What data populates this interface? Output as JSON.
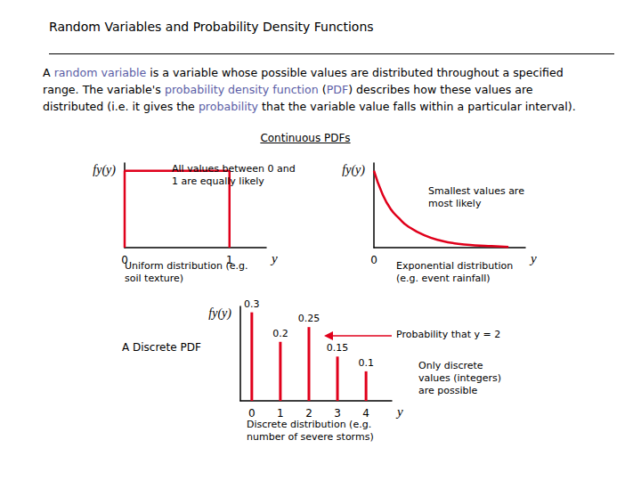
{
  "header": {
    "title": "Random Variables and Probability Density Functions"
  },
  "paragraph": [
    {
      "text": "A "
    },
    {
      "text": "random variable",
      "highlight": true
    },
    {
      "text": " is a variable whose possible values are distributed throughout a specified range.  The variable's "
    },
    {
      "text": "probability density function",
      "highlight": true
    },
    {
      "text": " ("
    },
    {
      "text": "PDF",
      "highlight": true
    },
    {
      "text": ") describes how these values are distributed (i.e. it gives the "
    },
    {
      "text": "probability",
      "highlight": true
    },
    {
      "text": " that the variable value falls within a particular interval)."
    }
  ],
  "section_title": "Continuous PDFs",
  "chart_data": [
    {
      "type": "line",
      "annotations": [
        "All values between 0 and 1 are equally likely"
      ],
      "caption": "Uniform distribution (e.g. soil texture)",
      "x": [
        0,
        0,
        1,
        1
      ],
      "values": [
        0,
        1,
        1,
        0
      ],
      "xlabel": "y",
      "ylabel": "fy(y)",
      "xlim": [
        0,
        1.35
      ],
      "ylim": [
        0,
        1.1
      ],
      "xticks": [
        0,
        1
      ],
      "tick_labels": "x",
      "color": "#e0001b",
      "line_style": "solid"
    },
    {
      "type": "line",
      "annotations": [
        "Smallest values are most likely"
      ],
      "caption": "Exponential distribution (e.g. event rainfall)",
      "x": [
        0,
        0.25,
        0.5,
        0.75,
        1,
        1.5,
        2,
        2.5,
        3,
        3.5,
        4
      ],
      "values": [
        1.0,
        0.7,
        0.5,
        0.38,
        0.28,
        0.16,
        0.09,
        0.05,
        0.03,
        0.02,
        0.01
      ],
      "xlabel": "y",
      "ylabel": "fy(y)",
      "xlim": [
        0,
        4.5
      ],
      "ylim": [
        0,
        1.1
      ],
      "xticks": [
        0
      ],
      "tick_labels": "x",
      "color": "#e0001b",
      "line_style": "smooth"
    },
    {
      "type": "bar",
      "title": "A Discrete PDF",
      "annotations": [
        "Probability that y = 2",
        "Only discrete values (integers) are possible"
      ],
      "caption": "Discrete distribution (e.g. number of severe storms)",
      "x": [
        0,
        1,
        2,
        3,
        4
      ],
      "values": [
        0.3,
        0.2,
        0.25,
        0.15,
        0.1
      ],
      "xlabel": "y",
      "ylabel": "fy(y)",
      "xlim": [
        -0.4,
        4.9
      ],
      "ylim": [
        0,
        0.32
      ],
      "xticks": [
        0,
        1,
        2,
        3,
        4
      ],
      "tick_labels": "x",
      "data_labels": true,
      "color": "#e0001b"
    }
  ]
}
